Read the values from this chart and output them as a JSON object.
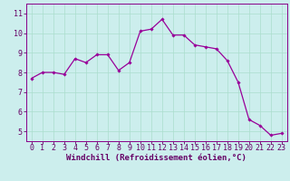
{
  "x": [
    0,
    1,
    2,
    3,
    4,
    5,
    6,
    7,
    8,
    9,
    10,
    11,
    12,
    13,
    14,
    15,
    16,
    17,
    18,
    19,
    20,
    21,
    22,
    23
  ],
  "y": [
    7.7,
    8.0,
    8.0,
    7.9,
    8.7,
    8.5,
    8.9,
    8.9,
    8.1,
    8.5,
    10.1,
    10.2,
    10.7,
    9.9,
    9.9,
    9.4,
    9.3,
    9.2,
    8.6,
    7.5,
    5.6,
    5.3,
    4.8,
    4.9
  ],
  "line_color": "#990099",
  "marker": "D",
  "marker_size": 1.8,
  "line_width": 0.9,
  "bg_color": "#cceeed",
  "grid_color": "#aaddcc",
  "xlabel": "Windchill (Refroidissement éolien,°C)",
  "ylim": [
    4.5,
    11.5
  ],
  "xlim": [
    -0.5,
    23.5
  ],
  "yticks": [
    5,
    6,
    7,
    8,
    9,
    10,
    11
  ],
  "xticks": [
    0,
    1,
    2,
    3,
    4,
    5,
    6,
    7,
    8,
    9,
    10,
    11,
    12,
    13,
    14,
    15,
    16,
    17,
    18,
    19,
    20,
    21,
    22,
    23
  ],
  "xlabel_fontsize": 6.5,
  "tick_fontsize": 6.0,
  "xlabel_color": "#660066",
  "tick_color": "#660066",
  "spine_color": "#880088",
  "grid_lw": 0.5
}
